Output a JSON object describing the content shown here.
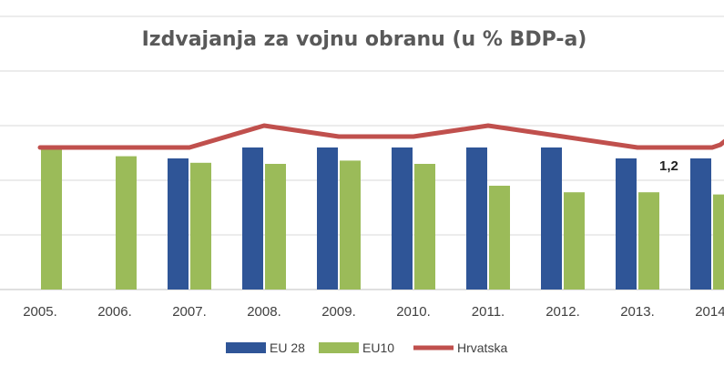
{
  "chart_data": {
    "type": "bar",
    "title": "Izdvajanja za vojnu obranu (u % BDP-a)",
    "categories": [
      "2005.",
      "2006.",
      "2007.",
      "2008.",
      "2009.",
      "2010.",
      "2011.",
      "2012.",
      "2013.",
      "2014."
    ],
    "series": [
      {
        "name": "EU 28",
        "type": "bar",
        "color": "#2f5597",
        "values": [
          null,
          null,
          1.2,
          1.3,
          1.3,
          1.3,
          1.3,
          1.3,
          1.2,
          1.2
        ]
      },
      {
        "name": "EU10",
        "type": "bar",
        "color": "#9bbb59",
        "values": [
          1.3,
          1.22,
          1.16,
          1.15,
          1.18,
          1.15,
          0.95,
          0.89,
          0.89,
          0.87
        ]
      },
      {
        "name": "Hrvatska",
        "type": "line",
        "color": "#c0504d",
        "values": [
          1.3,
          1.3,
          1.3,
          1.5,
          1.4,
          1.4,
          1.5,
          1.4,
          1.3,
          1.3
        ]
      }
    ],
    "data_labels": [
      {
        "series": "EU 28",
        "category": "2014.",
        "text": "1,2"
      }
    ],
    "ylim": [
      0,
      2.5
    ],
    "y_gridlines": [
      0,
      0.5,
      1.0,
      1.5,
      2.0,
      2.5
    ],
    "grid": true,
    "legend_position": "bottom"
  }
}
